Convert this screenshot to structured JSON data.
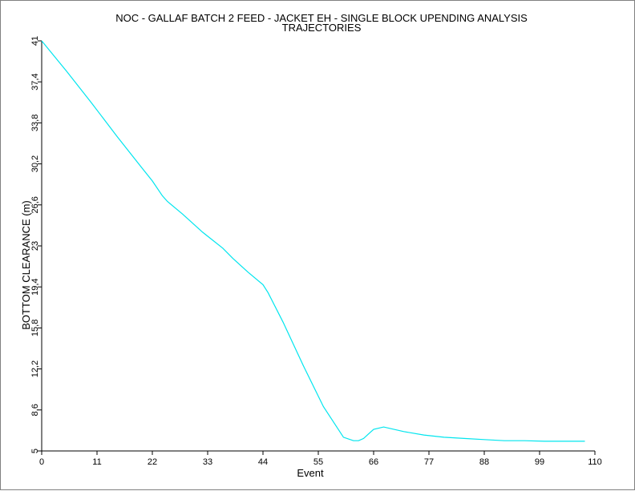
{
  "chart_data": {
    "type": "line",
    "title": "NOC - GALLAF BATCH 2 FEED - JACKET EH - SINGLE BLOCK UPENDING ANALYSIS",
    "subtitle": "TRAJECTORIES",
    "xlabel": "Event",
    "ylabel": "BOTTOM CLEARANCE (m)",
    "xlim": [
      0,
      110
    ],
    "ylim": [
      5,
      41
    ],
    "x_ticks": [
      "0",
      "11",
      "22",
      "33",
      "44",
      "55",
      "66",
      "77",
      "88",
      "99",
      "110"
    ],
    "y_ticks": [
      "5",
      "8,6",
      "12,2",
      "15,8",
      "19,4",
      "23",
      "26,6",
      "30,2",
      "33,8",
      "37,4",
      "41"
    ],
    "grid": false,
    "legend": "none",
    "line_color": "#00e5ee",
    "series": [
      {
        "x": [
          0,
          5,
          10,
          15,
          20,
          22,
          24,
          25,
          28,
          32,
          36,
          38,
          41,
          44,
          45,
          48,
          52,
          56,
          60,
          62,
          63,
          64,
          65,
          66,
          68,
          72,
          76,
          80,
          84,
          88,
          92,
          96,
          100,
          104,
          108
        ],
        "y": [
          41,
          38.3,
          35.5,
          32.6,
          29.8,
          28.7,
          27.4,
          26.9,
          25.8,
          24.2,
          22.8,
          21.9,
          20.7,
          19.6,
          18.9,
          16.3,
          12.5,
          8.9,
          6.2,
          5.9,
          5.9,
          6.1,
          6.5,
          6.9,
          7.1,
          6.7,
          6.4,
          6.2,
          6.1,
          6.0,
          5.9,
          5.9,
          5.85,
          5.85,
          5.85
        ]
      }
    ]
  }
}
